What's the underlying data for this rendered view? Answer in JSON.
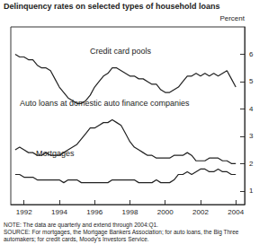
{
  "chart_data": {
    "type": "line",
    "title": "Delinquency rates on selected types of household loans",
    "ylabel": "Percent",
    "x": [
      1991.5,
      1991.75,
      1992,
      1992.25,
      1992.5,
      1992.75,
      1993,
      1993.25,
      1993.5,
      1993.75,
      1994,
      1994.25,
      1994.5,
      1994.75,
      1995,
      1995.25,
      1995.5,
      1995.75,
      1996,
      1996.25,
      1996.5,
      1996.75,
      1997,
      1997.25,
      1997.5,
      1997.75,
      1998,
      1998.25,
      1998.5,
      1998.75,
      1999,
      1999.25,
      1999.5,
      1999.75,
      2000,
      2000.25,
      2000.5,
      2000.75,
      2001,
      2001.25,
      2001.5,
      2001.75,
      2002,
      2002.25,
      2002.5,
      2002.75,
      2003,
      2003.25,
      2003.5,
      2003.75,
      2004
    ],
    "series": [
      {
        "name": "Credit card pools",
        "color": "#222222",
        "values": [
          6.0,
          5.9,
          5.9,
          5.8,
          5.8,
          5.6,
          5.5,
          5.5,
          5.4,
          5.1,
          4.8,
          4.6,
          4.4,
          4.3,
          4.2,
          4.2,
          4.3,
          4.5,
          4.8,
          5.0,
          5.2,
          5.3,
          5.5,
          5.5,
          5.4,
          5.3,
          5.2,
          5.2,
          5.1,
          5.1,
          5.0,
          4.9,
          4.9,
          4.7,
          4.6,
          4.6,
          4.7,
          4.8,
          5.0,
          5.2,
          5.2,
          5.3,
          5.2,
          5.3,
          5.2,
          5.3,
          5.2,
          5.3,
          5.4,
          5.1,
          4.8
        ]
      },
      {
        "name": "Auto loans at domestic auto finance companies",
        "color": "#222222",
        "values": [
          2.5,
          2.6,
          2.5,
          2.4,
          2.4,
          2.3,
          2.3,
          2.4,
          2.3,
          2.3,
          2.3,
          2.4,
          2.5,
          2.6,
          2.7,
          2.9,
          3.1,
          3.3,
          3.3,
          3.4,
          3.5,
          3.5,
          3.6,
          3.5,
          3.4,
          3.1,
          2.8,
          2.6,
          2.5,
          2.4,
          2.3,
          2.3,
          2.2,
          2.2,
          2.2,
          2.2,
          2.3,
          2.3,
          2.3,
          2.4,
          2.3,
          2.1,
          2.1,
          2.1,
          2.2,
          2.2,
          2.2,
          2.1,
          2.1,
          2.0,
          2.0
        ]
      },
      {
        "name": "Mortgages",
        "color": "#222222",
        "values": [
          1.6,
          1.6,
          1.5,
          1.5,
          1.5,
          1.4,
          1.4,
          1.4,
          1.4,
          1.4,
          1.4,
          1.3,
          1.4,
          1.4,
          1.4,
          1.3,
          1.3,
          1.3,
          1.3,
          1.3,
          1.3,
          1.3,
          1.4,
          1.4,
          1.4,
          1.4,
          1.4,
          1.4,
          1.3,
          1.3,
          1.3,
          1.3,
          1.4,
          1.3,
          1.3,
          1.3,
          1.4,
          1.6,
          1.6,
          1.7,
          1.6,
          1.7,
          1.8,
          1.8,
          1.7,
          1.7,
          1.8,
          1.7,
          1.7,
          1.6,
          1.6
        ]
      }
    ],
    "xlim": [
      1991.25,
      2004.5
    ],
    "xticks": [
      1992,
      1994,
      1996,
      1998,
      2000,
      2002,
      2004
    ],
    "ylim": [
      0.5,
      7
    ],
    "yticks": [
      1,
      2,
      3,
      4,
      5,
      6
    ],
    "grid": false,
    "notes": [
      "NOTE: The data are quarterly and extend through 2004:Q1.",
      "SOURCE: For mortgages, the Mortgage Bankers Association; for auto loans, the Big Three automakers; for credit cards, Moody's Investors Service."
    ]
  }
}
